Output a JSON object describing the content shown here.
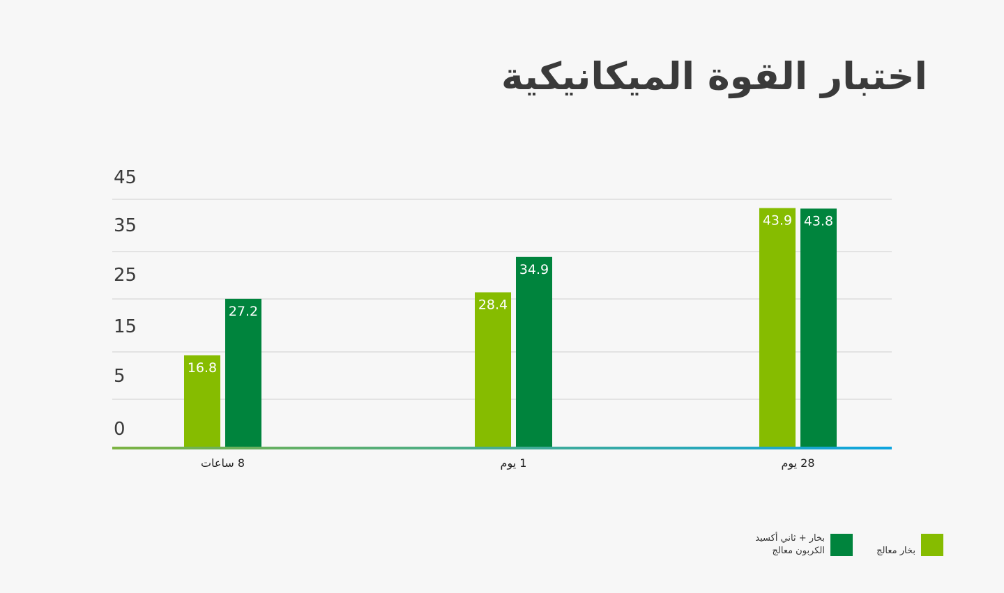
{
  "title": "اختبار القوة الميكانيكية",
  "legend": {
    "series_1_label": "بخار معالج",
    "series_2_label_line1": "بخار + ثاني أكسيد",
    "series_2_label_line2": "الكربون معالج"
  },
  "colors": {
    "series_1": "#86bc00",
    "series_2": "#00843d",
    "grid": "#cfcfcf",
    "axis_start": "#7cb342",
    "axis_end": "#0ea5e0",
    "tick_text": "#3a3a3a",
    "value_text": "#ffffff"
  },
  "chart_data": {
    "type": "bar",
    "title": "اختبار القوة الميكانيكية",
    "categories": [
      "8 ساعات",
      "1 يوم",
      "28 يوم"
    ],
    "series": [
      {
        "name": "بخار معالج",
        "values": [
          16.8,
          28.4,
          43.9
        ]
      },
      {
        "name": "بخار + ثاني أكسيد الكربون معالج",
        "values": [
          27.2,
          34.9,
          43.8
        ]
      }
    ],
    "y_ticks": [
      "0",
      "5",
      "15",
      "25",
      "35",
      "45"
    ],
    "ylim": [
      0,
      45
    ],
    "grid": true,
    "legend_position": "bottom-right"
  }
}
